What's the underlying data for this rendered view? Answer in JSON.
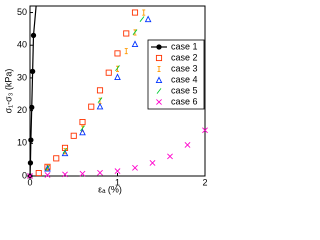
{
  "chart_data": {
    "type": "scatter",
    "xlabel": "εₐ (%)",
    "ylabel": "σ₁-σ₃ (kPa)",
    "xlim": [
      0,
      2
    ],
    "ylim": [
      0,
      52
    ],
    "xticks": [
      0,
      1,
      2
    ],
    "yticks": [
      0,
      10,
      20,
      30,
      40,
      50
    ],
    "legend": "upper right",
    "series": [
      {
        "name": "case 1",
        "color": "#000000",
        "marker": "circle",
        "line": true,
        "x": [
          0,
          0.005,
          0.01,
          0.02,
          0.03,
          0.04,
          0.07
        ],
        "values": [
          0,
          4,
          11,
          21,
          32,
          43,
          52
        ]
      },
      {
        "name": "case 2",
        "color": "#ff3300",
        "marker": "square",
        "line": false,
        "x": [
          0.1,
          0.2,
          0.3,
          0.4,
          0.5,
          0.6,
          0.7,
          0.8,
          0.9,
          1.0,
          1.1,
          1.2
        ],
        "values": [
          0.9,
          2.8,
          5.4,
          8.6,
          12.3,
          16.5,
          21.2,
          26.2,
          31.6,
          37.5,
          43.6,
          50
        ]
      },
      {
        "name": "case 3",
        "color": "#ff9900",
        "marker": "bar",
        "line": false,
        "x": [
          0.2,
          0.4,
          0.6,
          0.8,
          1.0,
          1.1,
          1.2,
          1.3
        ],
        "values": [
          2.5,
          7.6,
          14.5,
          23.0,
          32.8,
          38.2,
          43.9,
          50
        ]
      },
      {
        "name": "case 4",
        "color": "#0033ff",
        "marker": "triangle",
        "line": false,
        "x": [
          0.2,
          0.4,
          0.6,
          0.8,
          1.0,
          1.2,
          1.35
        ],
        "values": [
          2.3,
          7.0,
          13.4,
          21.3,
          30.3,
          40.4,
          48
        ]
      },
      {
        "name": "case 5",
        "color": "#00cc33",
        "marker": "slash",
        "line": false,
        "x": [
          0.2,
          0.4,
          0.6,
          0.8,
          1.0,
          1.2,
          1.28
        ],
        "values": [
          2.5,
          7.7,
          14.6,
          23.2,
          33.0,
          44.0,
          48
        ]
      },
      {
        "name": "case 6",
        "color": "#ff00cc",
        "marker": "cross",
        "line": false,
        "x": [
          0,
          0.2,
          0.4,
          0.6,
          0.8,
          1.0,
          1.2,
          1.4,
          1.6,
          1.8,
          2.0
        ],
        "values": [
          0,
          0.3,
          0.5,
          0.7,
          1,
          1.5,
          2.5,
          4,
          6,
          9.5,
          14
        ]
      }
    ]
  }
}
